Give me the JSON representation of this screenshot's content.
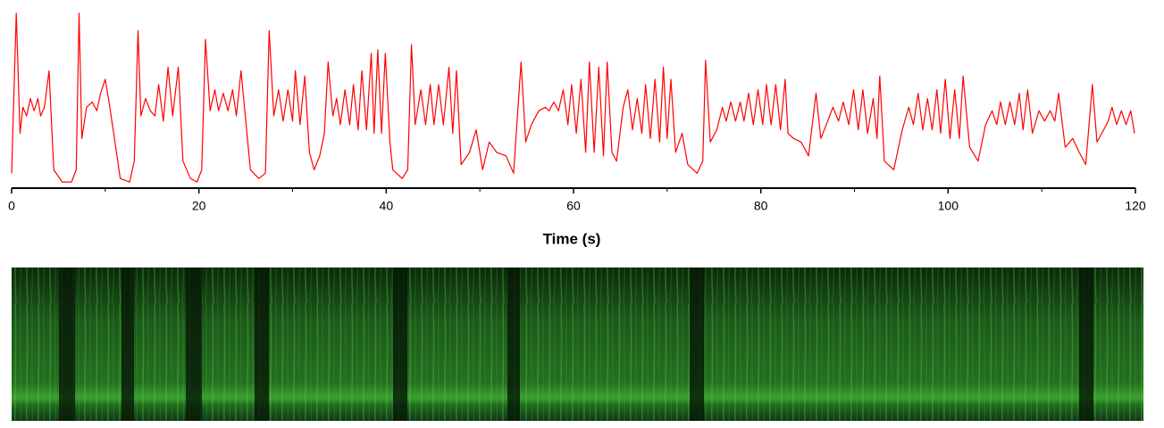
{
  "chart_data": {
    "type": "line",
    "x_label": "Time (s)",
    "color": "#ff0000",
    "xlim": [
      0,
      120
    ],
    "xticks": [
      0,
      20,
      40,
      60,
      80,
      100,
      120
    ],
    "xminor_ticks": [
      10,
      30,
      50,
      70,
      90,
      110
    ],
    "ylim": [
      0,
      100
    ],
    "x": [
      0,
      0.5,
      0.9,
      1.2,
      1.6,
      2.0,
      2.4,
      2.8,
      3.1,
      3.5,
      4.0,
      4.5,
      5.4,
      6.4,
      6.9,
      7.2,
      7.5,
      8.0,
      8.6,
      9.1,
      9.5,
      10.0,
      10.4,
      10.9,
      11.6,
      12.6,
      13.1,
      13.5,
      13.8,
      14.3,
      14.8,
      15.3,
      15.7,
      16.2,
      16.7,
      17.2,
      17.8,
      18.3,
      19.1,
      19.8,
      20.3,
      20.7,
      21.2,
      21.7,
      22.1,
      22.6,
      23.1,
      23.6,
      24.0,
      24.5,
      25.5,
      26.4,
      27.1,
      27.5,
      28.0,
      28.5,
      29.0,
      29.5,
      30.0,
      30.3,
      30.8,
      31.3,
      31.8,
      32.3,
      32.9,
      33.4,
      33.8,
      34.3,
      34.7,
      35.1,
      35.6,
      36.1,
      36.5,
      37.0,
      37.4,
      37.9,
      38.4,
      38.7,
      39.1,
      39.5,
      39.9,
      40.4,
      40.7,
      41.7,
      42.3,
      42.7,
      43.1,
      43.7,
      44.2,
      44.7,
      45.1,
      45.6,
      46.1,
      46.7,
      47.1,
      47.5,
      48.0,
      48.9,
      49.6,
      50.3,
      51.0,
      51.8,
      52.8,
      53.6,
      54.4,
      54.9,
      55.5,
      56.3,
      57.0,
      57.4,
      57.9,
      58.4,
      58.9,
      59.4,
      59.8,
      60.3,
      60.8,
      61.3,
      61.7,
      62.2,
      62.7,
      63.2,
      63.6,
      64.1,
      64.6,
      65.3,
      65.8,
      66.3,
      66.8,
      67.3,
      67.7,
      68.2,
      68.7,
      69.2,
      69.6,
      70.0,
      70.4,
      70.9,
      71.6,
      72.2,
      73.2,
      73.8,
      74.1,
      74.6,
      75.3,
      75.9,
      76.3,
      76.8,
      77.3,
      77.8,
      78.2,
      78.7,
      79.2,
      79.7,
      80.2,
      80.6,
      81.1,
      81.6,
      82.1,
      82.6,
      82.9,
      83.5,
      84.3,
      85.1,
      85.9,
      86.4,
      87.0,
      87.7,
      88.3,
      88.8,
      89.4,
      89.9,
      90.4,
      90.9,
      91.4,
      92.0,
      92.4,
      92.7,
      93.2,
      94.2,
      95.1,
      95.8,
      96.3,
      96.8,
      97.3,
      97.8,
      98.3,
      98.8,
      99.2,
      99.7,
      100.2,
      100.7,
      101.2,
      101.6,
      102.3,
      103.2,
      104.0,
      104.7,
      105.2,
      105.6,
      106.1,
      106.6,
      107.1,
      107.6,
      108.0,
      108.5,
      109.0,
      109.7,
      110.3,
      110.9,
      111.4,
      111.8,
      112.5,
      113.3,
      114.0,
      114.7,
      115.4,
      115.9,
      116.6,
      117.1,
      117.5,
      118.0,
      118.5,
      119.0,
      119.5,
      119.9
    ],
    "values": [
      7,
      99,
      30,
      45,
      40,
      50,
      43,
      50,
      40,
      45,
      66,
      9,
      2,
      2,
      9,
      99,
      27,
      45,
      48,
      43,
      53,
      61,
      48,
      30,
      4,
      2,
      14,
      89,
      40,
      50,
      43,
      40,
      58,
      37,
      68,
      40,
      68,
      14,
      4,
      2,
      9,
      84,
      43,
      55,
      43,
      53,
      43,
      55,
      40,
      66,
      9,
      4,
      7,
      89,
      40,
      55,
      37,
      55,
      37,
      66,
      35,
      63,
      19,
      9,
      17,
      30,
      71,
      40,
      50,
      35,
      55,
      35,
      58,
      32,
      66,
      32,
      76,
      30,
      78,
      30,
      76,
      25,
      9,
      4,
      9,
      81,
      35,
      55,
      35,
      58,
      35,
      58,
      35,
      68,
      30,
      66,
      12,
      19,
      32,
      9,
      25,
      19,
      17,
      7,
      71,
      25,
      35,
      43,
      45,
      43,
      48,
      43,
      55,
      35,
      58,
      30,
      61,
      19,
      71,
      19,
      68,
      17,
      71,
      19,
      14,
      45,
      55,
      32,
      50,
      30,
      58,
      27,
      61,
      25,
      68,
      27,
      61,
      19,
      30,
      12,
      7,
      14,
      72,
      25,
      32,
      45,
      37,
      48,
      37,
      48,
      37,
      53,
      35,
      55,
      35,
      58,
      35,
      58,
      32,
      61,
      30,
      27,
      25,
      17,
      53,
      27,
      35,
      45,
      37,
      48,
      35,
      55,
      32,
      55,
      30,
      50,
      27,
      63,
      14,
      9,
      32,
      45,
      35,
      53,
      32,
      50,
      32,
      55,
      30,
      61,
      27,
      55,
      27,
      63,
      22,
      14,
      35,
      43,
      35,
      48,
      35,
      48,
      35,
      53,
      32,
      55,
      30,
      43,
      37,
      43,
      37,
      53,
      22,
      27,
      19,
      12,
      58,
      25,
      32,
      37,
      45,
      35,
      43,
      35,
      43,
      30
    ]
  }
}
